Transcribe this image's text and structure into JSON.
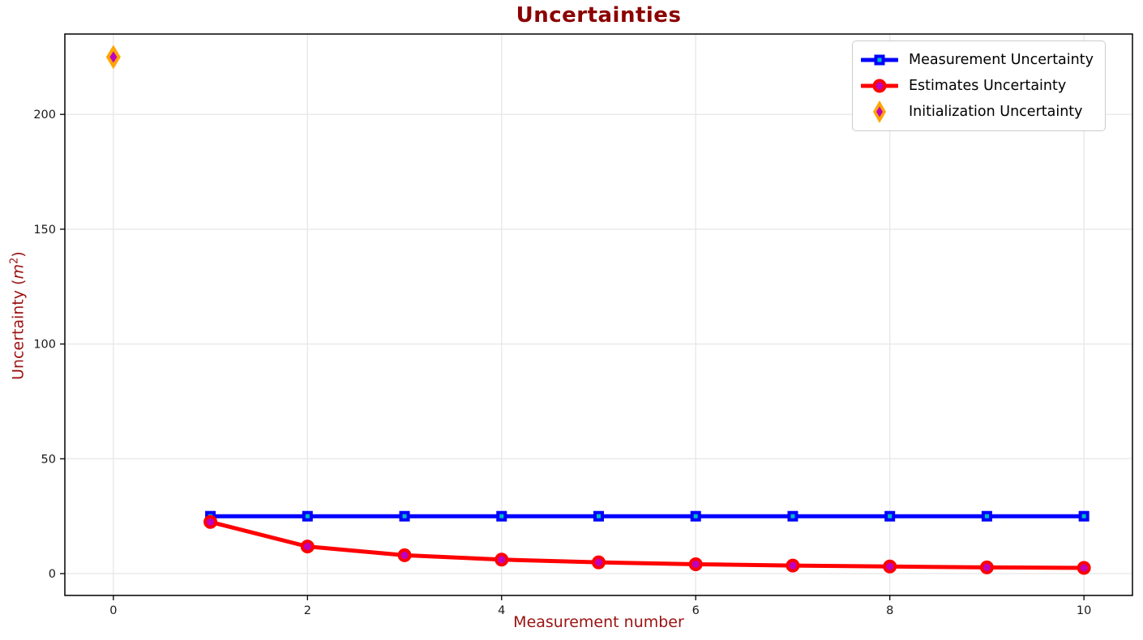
{
  "figure": {
    "title": "Uncertainties",
    "background_color": "#ffffff",
    "title_color": "#8b0000",
    "axis_label_color": "#9b1212",
    "tick_label_color": "#1a1a1a",
    "grid_color": "#e8e8e8",
    "spine_color": "#000000",
    "legend_border_color": "#cccccc"
  },
  "ylabel_parts": {
    "prefix": "Uncertainty (",
    "var": "m",
    "sup": "2",
    "suffix": ")"
  },
  "chart_data": {
    "type": "line",
    "title": "Uncertainties",
    "xlabel": "Measurement number",
    "ylabel": "Uncertainty (m^2)",
    "xlim": [
      -0.5,
      10.5
    ],
    "ylim": [
      -9.5,
      235
    ],
    "x_ticks": [
      0,
      2,
      4,
      6,
      8,
      10
    ],
    "y_ticks": [
      0,
      50,
      100,
      150,
      200
    ],
    "grid": true,
    "legend_position": "upper right",
    "series": [
      {
        "name": "Measurement Uncertainty",
        "type": "line",
        "marker": "square",
        "line_color": "#0000ff",
        "marker_face": "#00bfbf",
        "marker_edge": "#0000ff",
        "x": [
          1,
          2,
          3,
          4,
          5,
          6,
          7,
          8,
          9,
          10
        ],
        "y": [
          25,
          25,
          25,
          25,
          25,
          25,
          25,
          25,
          25,
          25
        ]
      },
      {
        "name": "Estimates Uncertainty",
        "type": "line",
        "marker": "circle",
        "line_color": "#ff0000",
        "marker_face": "#bf00bf",
        "marker_edge": "#ff0000",
        "x": [
          1,
          2,
          3,
          4,
          5,
          6,
          7,
          8,
          9,
          10
        ],
        "y": [
          22.5,
          11.8,
          8.0,
          6.1,
          4.9,
          4.1,
          3.5,
          3.1,
          2.7,
          2.5
        ]
      },
      {
        "name": "Initialization Uncertainty",
        "type": "scatter",
        "marker": "thin-diamond",
        "line_color": "none",
        "marker_face": "#bf00bf",
        "marker_edge": "#ffa500",
        "x": [
          0
        ],
        "y": [
          225
        ]
      }
    ]
  }
}
